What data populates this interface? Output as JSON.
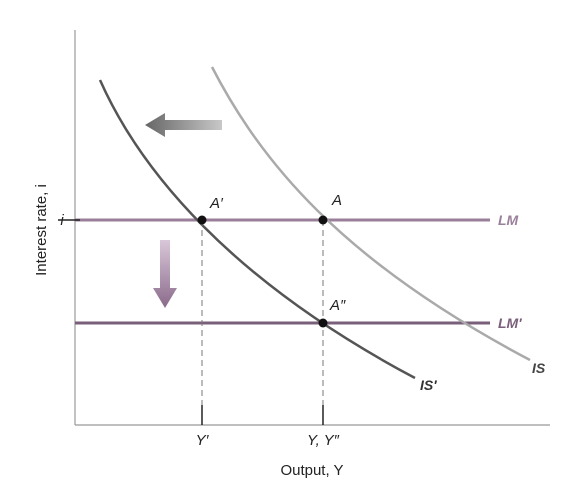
{
  "diagram": {
    "y_axis_label": "Interest rate, i",
    "x_axis_label": "Output, Y",
    "y_tick": "i",
    "x_ticks": [
      "Y′",
      "Y, Y″"
    ],
    "curves": {
      "lm": "LM",
      "lm_prime": "LM′",
      "is": "IS",
      "is_prime": "IS′"
    },
    "points": {
      "a": "A",
      "a_prime": "A′",
      "a_double_prime": "A″"
    }
  }
}
